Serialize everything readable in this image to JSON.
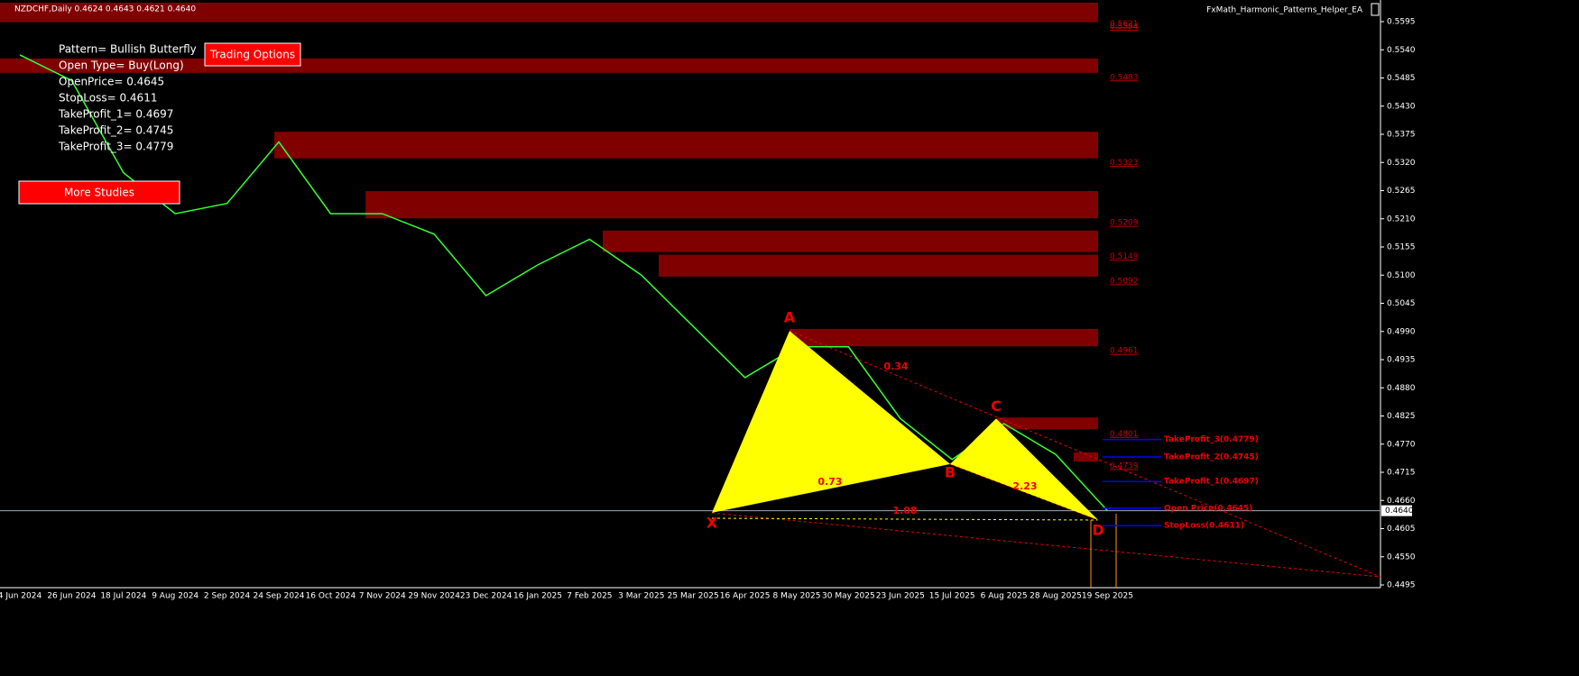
{
  "header": {
    "symbol": "NZDCHF,Daily  0.4624 0.4643 0.4621 0.4640",
    "expert": "FxMath_Harmonic_Patterns_Helper_EA"
  },
  "info": [
    "Pattern= Bullish Butterfly",
    "Open Type= Buy(Long)",
    "OpenPrice= 0.4645",
    "StopLoss= 0.4611",
    "TakeProfit_1= 0.4697",
    "TakeProfit_2= 0.4745",
    "TakeProfit_3= 0.4779"
  ],
  "buttons": {
    "trading": "Trading Options",
    "studies": "More Studies"
  },
  "price_axis": {
    "ylim": [
      0.5595,
      0.4495
    ],
    "yticks": [
      {
        "value": 0.5595,
        "label": "0.5595"
      },
      {
        "value": 0.554,
        "label": "0.5540"
      },
      {
        "value": 0.5485,
        "label": "0.5485"
      },
      {
        "value": 0.543,
        "label": "0.5430"
      },
      {
        "value": 0.5375,
        "label": "0.5375"
      },
      {
        "value": 0.532,
        "label": "0.5320"
      },
      {
        "value": 0.5265,
        "label": "0.5265"
      },
      {
        "value": 0.521,
        "label": "0.5210"
      },
      {
        "value": 0.5155,
        "label": "0.5155"
      },
      {
        "value": 0.51,
        "label": "0.5100"
      },
      {
        "value": 0.5045,
        "label": "0.5045"
      },
      {
        "value": 0.499,
        "label": "0.4990"
      },
      {
        "value": 0.4935,
        "label": "0.4935"
      },
      {
        "value": 0.488,
        "label": "0.4880"
      },
      {
        "value": 0.4825,
        "label": "0.4825"
      },
      {
        "value": 0.477,
        "label": "0.4770"
      },
      {
        "value": 0.4715,
        "label": "0.4715"
      },
      {
        "value": 0.466,
        "label": "0.4660"
      },
      {
        "value": 0.4605,
        "label": "0.4605"
      },
      {
        "value": 0.455,
        "label": "0.4550"
      },
      {
        "value": 0.4495,
        "label": "0.4495"
      }
    ],
    "current": {
      "value": 0.464,
      "label": "0.4640"
    }
  },
  "dates": [
    "4 Jun 2024",
    "26 Jun 2024",
    "18 Jul 2024",
    "9 Aug 2024",
    "2 Sep 2024",
    "24 Sep 2024",
    "16 Oct 2024",
    "7 Nov 2024",
    "29 Nov 2024",
    "23 Dec 2024",
    "16 Jan 2025",
    "7 Feb 2025",
    "3 Mar 2025",
    "25 Mar 2025",
    "16 Apr 2025",
    "8 May 2025",
    "30 May 2025",
    "23 Jun 2025",
    "15 Jul 2025",
    "6 Aug 2025",
    "28 Aug 2025",
    "19 Sep 2025"
  ],
  "closes": [
    0.553,
    0.548,
    0.53,
    0.522,
    0.524,
    0.536,
    0.522,
    0.522,
    0.518,
    0.506,
    0.512,
    0.517,
    0.51,
    0.5,
    0.49,
    0.496,
    0.496,
    0.482,
    0.474,
    0.481,
    0.475,
    0.464
  ],
  "zones": [
    {
      "top": 0.5632,
      "bottom": 0.5599,
      "label": "0.5621"
    },
    {
      "top": 0.5599,
      "bottom": 0.5594,
      "label": "0.5594"
    },
    {
      "top": 0.5523,
      "bottom": 0.5495,
      "label": "0.5483"
    },
    {
      "top": 0.538,
      "bottom": 0.5328,
      "label": "0.5323"
    },
    {
      "top": 0.5264,
      "bottom": 0.5211,
      "label": "0.5209"
    },
    {
      "top": 0.5187,
      "bottom": 0.5145,
      "label": "0.5149"
    },
    {
      "top": 0.514,
      "bottom": 0.5097,
      "label": "0.5092"
    },
    {
      "top": 0.4995,
      "bottom": 0.4961,
      "label": "0.4961"
    },
    {
      "top": 0.4822,
      "bottom": 0.4799,
      "label": "0.4801"
    },
    {
      "top": 0.4754,
      "bottom": 0.4736,
      "label": "0.4739"
    }
  ],
  "pattern": [
    {
      "name": "X",
      "price": 0.4636
    },
    {
      "name": "A",
      "price": 0.4991
    },
    {
      "name": "B",
      "price": 0.4731
    },
    {
      "name": "C",
      "price": 0.482
    },
    {
      "name": "D",
      "price": 0.4622
    }
  ],
  "ratios": [
    "0.34",
    "0.73",
    "1.08",
    "2.23"
  ],
  "levels": [
    {
      "label": "TakeProfit_3(0.4779)",
      "value": 0.4779
    },
    {
      "label": "TakeProfit_2(0.4745)",
      "value": 0.4745
    },
    {
      "label": "TakeProfit_1(0.4697)",
      "value": 0.4697
    },
    {
      "label": "Open Price(0.4645)",
      "value": 0.4645
    },
    {
      "label": "StopLoss(0.4611)",
      "value": 0.4611
    }
  ]
}
